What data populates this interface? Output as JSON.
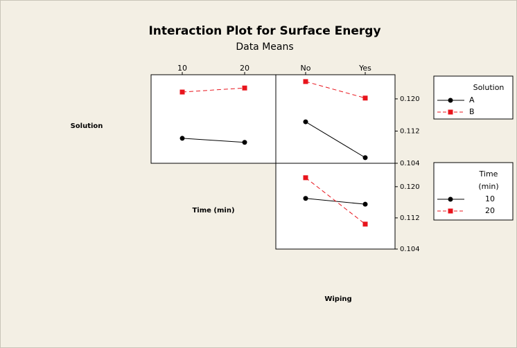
{
  "chart_data": {
    "type": "interaction",
    "title": "Interaction Plot for Surface Energy",
    "subtitle": "Data Means",
    "factors": [
      "Solution",
      "Time (min)",
      "Wiping"
    ],
    "x_levels": [
      [
        "10",
        "20"
      ],
      [
        "No",
        "Yes"
      ]
    ],
    "rows": [
      {
        "ylim": [
          0.104,
          0.126
        ],
        "yticks": [
          {
            "value": 0.104,
            "label": "0.104"
          },
          {
            "value": 0.112,
            "label": "0.112"
          },
          {
            "value": 0.12,
            "label": "0.120"
          }
        ],
        "panels": [
          {
            "series": [
              {
                "name": "A",
                "color": "#000000",
                "marker": "circle",
                "dashed": false,
                "values": [
                  0.1102,
                  0.1092
                ]
              },
              {
                "name": "B",
                "color": "#e8141c",
                "marker": "square",
                "dashed": true,
                "values": [
                  0.1217,
                  0.1227
                ]
              }
            ]
          },
          {
            "series": [
              {
                "name": "A",
                "color": "#000000",
                "marker": "circle",
                "dashed": false,
                "values": [
                  0.1143,
                  0.1054
                ]
              },
              {
                "name": "B",
                "color": "#e8141c",
                "marker": "square",
                "dashed": true,
                "values": [
                  0.1243,
                  0.1202
                ]
              }
            ]
          }
        ]
      },
      {
        "ylim": [
          0.104,
          0.126
        ],
        "yticks": [
          {
            "value": 0.104,
            "label": "0.104"
          },
          {
            "value": 0.112,
            "label": "0.112"
          },
          {
            "value": 0.12,
            "label": "0.120"
          }
        ],
        "panels": [
          null,
          {
            "series": [
              {
                "name": "10",
                "color": "#000000",
                "marker": "circle",
                "dashed": false,
                "values": [
                  0.117,
                  0.1155
                ]
              },
              {
                "name": "20",
                "color": "#e8141c",
                "marker": "square",
                "dashed": true,
                "values": [
                  0.1223,
                  0.1104
                ]
              }
            ]
          }
        ]
      }
    ],
    "legend_titles": [
      [
        "Solution"
      ],
      [
        "Time",
        "(min)"
      ]
    ]
  }
}
